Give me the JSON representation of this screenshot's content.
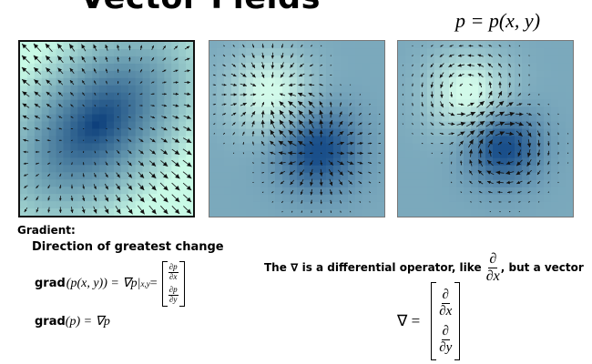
{
  "slide": {
    "title": "Vector Fields",
    "top_formula": "p = p(x, y)"
  },
  "panels": [
    {
      "field": "gradient-of-bowl",
      "colors": {
        "low": "#0a3d7a",
        "high": "#c8fae6"
      }
    },
    {
      "field": "gradient-of-peak-and-valley",
      "colors": {
        "low": "#1a4f8a",
        "high": "#d2faea"
      }
    },
    {
      "field": "rotated-gradient-of-peak-and-valley",
      "colors": {
        "low": "#1a4f8a",
        "high": "#d2faea"
      }
    }
  ],
  "gradient": {
    "heading": "Gradient:",
    "subheading": "Direction of greatest change",
    "eq1_grad": "grad",
    "eq1_rest": "(p(x, y)) = ∇p|",
    "eq1_sub": "x,y",
    "eq1_eq": " =",
    "dp": "∂p",
    "dx": "∂x",
    "dy": "∂y",
    "eq2_grad": "grad",
    "eq2_rest": "(p) = ∇p"
  },
  "operator": {
    "text_before": "The ∇ is a differential operator, like ",
    "partial": "∂",
    "dx": "∂x",
    "text_after": ", but a vector",
    "nabla_lhs": "∇ =",
    "dy": "∂y"
  }
}
